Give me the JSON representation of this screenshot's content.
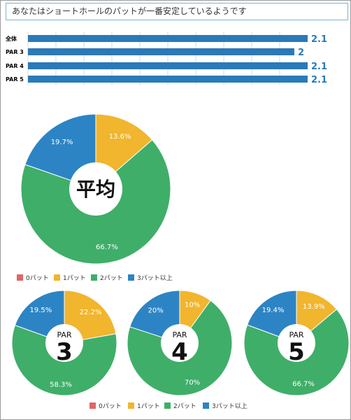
{
  "message": "あなたはショートホールのパットが一番安定しているようです",
  "colors": {
    "p0": "#e06666",
    "p1": "#f1b52e",
    "p2": "#3fae69",
    "p3": "#2d84c4",
    "bar": "#2a7ab8",
    "grid": "#d8d8d8"
  },
  "chart_data": [
    {
      "type": "bar",
      "orientation": "horizontal",
      "categories": [
        "全体",
        "PAR 3",
        "PAR 4",
        "PAR 5"
      ],
      "values": [
        2.1,
        2,
        2.1,
        2.1
      ],
      "labels": [
        "2.1",
        "2",
        "2.1",
        "2.1"
      ]
    },
    {
      "type": "pie",
      "center_label": "平均",
      "labels": [
        "0パット",
        "1パット",
        "2パット",
        "3パット以上"
      ],
      "values": [
        0,
        13.6,
        66.7,
        19.7
      ],
      "value_labels": [
        "",
        "13.6%",
        "66.7%",
        "19.7%"
      ]
    },
    {
      "type": "pie",
      "center_label_top": "PAR",
      "center_label": "3",
      "labels": [
        "0パット",
        "1パット",
        "2パット",
        "3パット以上"
      ],
      "values": [
        0,
        22.2,
        58.3,
        19.5
      ],
      "value_labels": [
        "",
        "22.2%",
        "58.3%",
        "19.5%"
      ]
    },
    {
      "type": "pie",
      "center_label_top": "PAR",
      "center_label": "4",
      "labels": [
        "0パット",
        "1パット",
        "2パット",
        "3パット以上"
      ],
      "values": [
        0,
        10,
        70,
        20
      ],
      "value_labels": [
        "",
        "10%",
        "70%",
        "20%"
      ]
    },
    {
      "type": "pie",
      "center_label_top": "PAR",
      "center_label": "5",
      "labels": [
        "0パット",
        "1パット",
        "2パット",
        "3パット以上"
      ],
      "values": [
        0,
        13.9,
        66.7,
        19.4
      ],
      "value_labels": [
        "",
        "13.9%",
        "66.7%",
        "19.4%"
      ]
    }
  ],
  "legend": [
    "0パット",
    "1パット",
    "2パット",
    "3パット以上"
  ]
}
